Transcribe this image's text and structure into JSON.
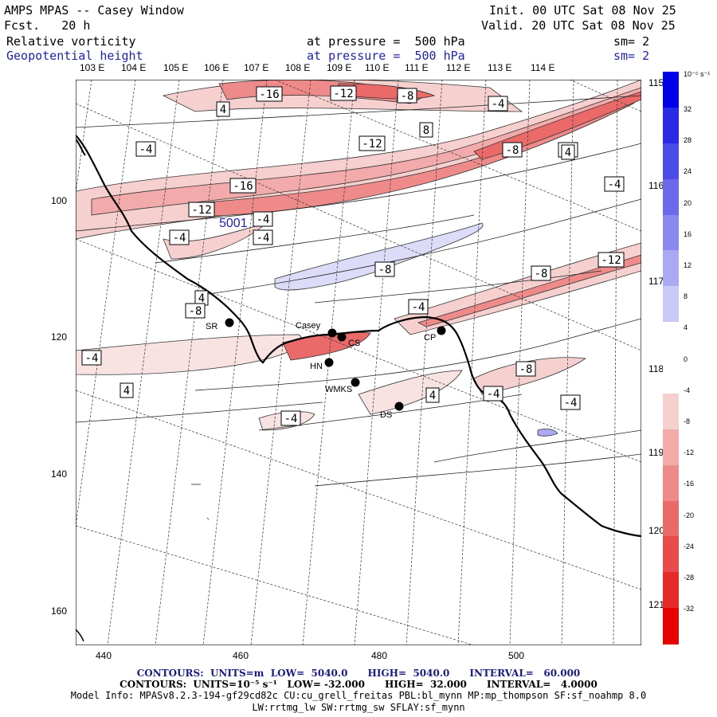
{
  "header": {
    "title": "AMPS MPAS -- Casey Window",
    "forecast": "Fcst.   20 h",
    "init": "Init. 00 UTC Sat 08 Nov 25",
    "valid": "Valid. 20 UTC Sat 08 Nov 25"
  },
  "fields": [
    {
      "name": "Relative vorticity",
      "pressure": "at pressure =  500 hPa",
      "smooth": "sm= 2",
      "color": "#000000"
    },
    {
      "name": "Geopotential height",
      "pressure": "at pressure =  500 hPa",
      "smooth": "sm= 2",
      "color": "#2222aa"
    }
  ],
  "longitude_labels": [
    "103 E",
    "104 E",
    "105 E",
    "106 E",
    "107 E",
    "108 E",
    "109 E",
    "110 E",
    "111 E",
    "112 E",
    "113 E",
    "114 E"
  ],
  "right_lon_labels": [
    "115 E",
    "116 E",
    "117 E",
    "118 E",
    "119 E",
    "120 E",
    "121 E"
  ],
  "x_ticks": [
    "440",
    "460",
    "480",
    "500"
  ],
  "y_ticks": [
    "100",
    "120",
    "140",
    "160"
  ],
  "stations": [
    {
      "label": "SR"
    },
    {
      "label": "Casey"
    },
    {
      "label": "CS"
    },
    {
      "label": "HN"
    },
    {
      "label": "WMKS"
    },
    {
      "label": "DS"
    },
    {
      "label": "CP"
    }
  ],
  "contour_labels": [
    "-16",
    "-12",
    "-8",
    "-4",
    "4",
    "8",
    "-12",
    "-8",
    "-4",
    "-8",
    "-4",
    "-16",
    "-12",
    "-4",
    "-8",
    "-4",
    "-4",
    "-12",
    "-8",
    "-4",
    "-8",
    "-4",
    "-4",
    "-4",
    "4",
    "4",
    "-4",
    "4",
    "4",
    "-8"
  ],
  "height_label": "5001",
  "colorbar": {
    "units": "10⁻⁵ s⁻¹",
    "ticks": [
      "32",
      "28",
      "24",
      "20",
      "16",
      "12",
      "8",
      "4",
      "0",
      "-4",
      "-8",
      "-12",
      "-16",
      "-20",
      "-24",
      "-28",
      "-32"
    ],
    "colors": [
      "#0000e6",
      "#2a2ae6",
      "#4b4be8",
      "#6a6aea",
      "#8a8aee",
      "#aaaaf2",
      "#cacaf6",
      "#ffffff",
      "#ffffff",
      "#f6cfcf",
      "#f2aaaa",
      "#ee8a8a",
      "#ea6a6a",
      "#e84b4b",
      "#e62a2a",
      "#e60000"
    ]
  },
  "footer": {
    "line1": "CONTOURS:  UNITS=m  LOW=  5040.0      HIGH=  5040.0      INTERVAL=   60.000",
    "line2": "CONTOURS:  UNITS=10⁻⁵ s⁻¹   LOW= -32.000      HIGH=  32.000      INTERVAL=   4.0000",
    "line3": "Model Info: MPASv8.2.3-194-gf29cd82c CU:cu_grell_freitas PBL:bl_mynn MP:mp_thompson SF:sf_noahmp 8.0",
    "line4": "LW:rrtmg_lw SW:rrtmg_sw SFLAY:sf_mynn"
  }
}
